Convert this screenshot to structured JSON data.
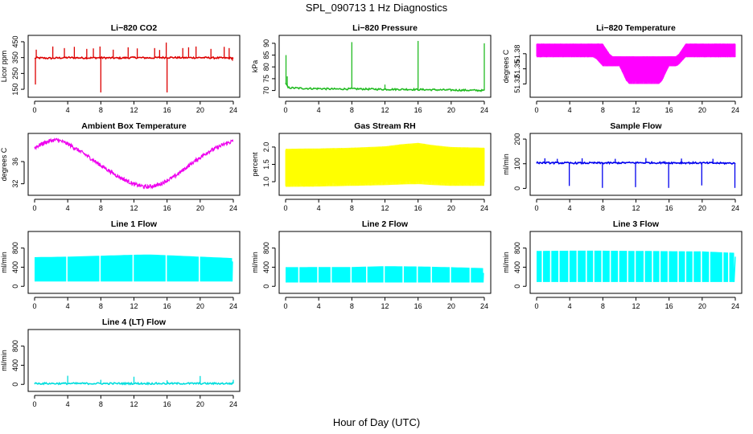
{
  "figure": {
    "title": "SPL_090713  1 Hz Diagnostics",
    "xlabel": "Hour of Day (UTC)"
  },
  "chart_data": [
    {
      "type": "line",
      "title": "Li−820 CO2",
      "ylabel": "Licor ppm",
      "color": "#dd0000",
      "xlim": [
        0,
        24
      ],
      "ylim": [
        120,
        470
      ],
      "xticks": [
        "0",
        "4",
        "8",
        "12",
        "16",
        "20",
        "24"
      ],
      "yticks": [
        {
          "v": 150,
          "label": "150"
        },
        {
          "v": 250,
          "label": "250"
        },
        {
          "v": 350,
          "label": "350"
        },
        {
          "v": 450,
          "label": "450"
        }
      ],
      "render": "spiky",
      "series": [
        {
          "x": [
            0,
            0.2,
            2,
            4,
            6,
            8,
            10,
            12,
            14,
            16,
            18,
            20,
            22,
            24
          ],
          "y": [
            345,
            348,
            346,
            350,
            348,
            349,
            347,
            350,
            348,
            351,
            349,
            350,
            348,
            347
          ]
        }
      ],
      "spikes": [
        {
          "x": 0.1,
          "y": 180
        },
        {
          "x": 0.2,
          "y": 400
        },
        {
          "x": 2.2,
          "y": 420
        },
        {
          "x": 3.6,
          "y": 410
        },
        {
          "x": 4.8,
          "y": 418
        },
        {
          "x": 6.3,
          "y": 405
        },
        {
          "x": 7.1,
          "y": 408
        },
        {
          "x": 7.9,
          "y": 420
        },
        {
          "x": 8.0,
          "y": 130
        },
        {
          "x": 9.5,
          "y": 400
        },
        {
          "x": 11.3,
          "y": 415
        },
        {
          "x": 12.4,
          "y": 408
        },
        {
          "x": 14.5,
          "y": 410
        },
        {
          "x": 15.1,
          "y": 398
        },
        {
          "x": 15.9,
          "y": 445
        },
        {
          "x": 16.0,
          "y": 130
        },
        {
          "x": 17.9,
          "y": 410
        },
        {
          "x": 18.6,
          "y": 415
        },
        {
          "x": 19.5,
          "y": 420
        },
        {
          "x": 21.3,
          "y": 405
        },
        {
          "x": 22.9,
          "y": 418
        },
        {
          "x": 23.5,
          "y": 410
        },
        {
          "x": 23.9,
          "y": 330
        }
      ]
    },
    {
      "type": "line",
      "title": "Li−820 Pressure",
      "ylabel": "kPa",
      "color": "#22bb22",
      "xlim": [
        0,
        24
      ],
      "ylim": [
        68.5,
        92
      ],
      "xticks": [
        "0",
        "4",
        "8",
        "12",
        "16",
        "20",
        "24"
      ],
      "yticks": [
        {
          "v": 70,
          "label": "70"
        },
        {
          "v": 75,
          "label": "75"
        },
        {
          "v": 80,
          "label": "80"
        },
        {
          "v": 85,
          "label": "85"
        },
        {
          "v": 90,
          "label": "90"
        }
      ],
      "render": "spiky",
      "series": [
        {
          "x": [
            0,
            0.3,
            2,
            4,
            6,
            8,
            10,
            12,
            14,
            16,
            18,
            20,
            22,
            24
          ],
          "y": [
            73,
            71.2,
            70.9,
            70.8,
            70.6,
            70.7,
            70.6,
            70.5,
            70.5,
            70.4,
            70.3,
            70.2,
            70.1,
            70.0
          ]
        }
      ],
      "spikes": [
        {
          "x": 0.05,
          "y": 85
        },
        {
          "x": 0.2,
          "y": 76
        },
        {
          "x": 8.0,
          "y": 90.5
        },
        {
          "x": 12.0,
          "y": 72.5
        },
        {
          "x": 16.0,
          "y": 91
        },
        {
          "x": 24.0,
          "y": 90
        }
      ]
    },
    {
      "type": "line",
      "title": "Li−820 Temperature",
      "ylabel": "degrees C",
      "color": "#ff00ff",
      "xlim": [
        0,
        24
      ],
      "ylim": [
        51.3,
        51.41
      ],
      "xticks": [
        "0",
        "4",
        "8",
        "12",
        "16",
        "20",
        "24"
      ],
      "yticks": [
        {
          "v": 51.32,
          "label": "51.32"
        },
        {
          "v": 51.35,
          "label": "51.35"
        },
        {
          "v": 51.38,
          "label": "51.38"
        }
      ],
      "render": "band",
      "series": [
        {
          "name": "upper",
          "x": [
            0,
            6,
            7,
            8,
            9,
            10,
            11,
            12,
            13,
            14,
            15,
            16,
            17,
            18,
            19,
            24
          ],
          "y": [
            51.4,
            51.4,
            51.4,
            51.4,
            51.375,
            51.375,
            51.375,
            51.375,
            51.375,
            51.375,
            51.375,
            51.375,
            51.375,
            51.4,
            51.4,
            51.4
          ]
        },
        {
          "name": "lower",
          "x": [
            0,
            6,
            7,
            8,
            9,
            10,
            11,
            12,
            13,
            14,
            15,
            16,
            17,
            18,
            19,
            24
          ],
          "y": [
            51.373,
            51.373,
            51.373,
            51.355,
            51.355,
            51.355,
            51.32,
            51.32,
            51.32,
            51.32,
            51.32,
            51.355,
            51.355,
            51.373,
            51.373,
            51.373
          ]
        }
      ]
    },
    {
      "type": "line",
      "title": "Ambient Box Temperature",
      "ylabel": "degrees C",
      "color": "#ee00ee",
      "xlim": [
        0,
        24
      ],
      "ylim": [
        30.5,
        40.5
      ],
      "xticks": [
        "0",
        "4",
        "8",
        "12",
        "16",
        "20",
        "24"
      ],
      "yticks": [
        {
          "v": 32,
          "label": "32"
        },
        {
          "v": 36,
          "label": "36"
        }
      ],
      "render": "noisy",
      "noise": 0.35,
      "series": [
        {
          "x": [
            0,
            1,
            2,
            2.8,
            4,
            6,
            8,
            10,
            12,
            13.5,
            15,
            17,
            19,
            21,
            23,
            24
          ],
          "y": [
            38.5,
            39.3,
            39.8,
            39.9,
            39.2,
            37.4,
            35.3,
            33.4,
            31.9,
            31.4,
            31.8,
            33.4,
            35.7,
            37.8,
            39.2,
            39.7
          ]
        }
      ]
    },
    {
      "type": "line",
      "title": "Gas Stream RH",
      "ylabel": "percent",
      "color": "#ffff00",
      "xlim": [
        0,
        24
      ],
      "ylim": [
        0.7,
        2.3
      ],
      "xticks": [
        "0",
        "4",
        "8",
        "12",
        "16",
        "20",
        "24"
      ],
      "yticks": [
        {
          "v": 1.0,
          "label": "1.0"
        },
        {
          "v": 1.5,
          "label": "1.5"
        },
        {
          "v": 2.0,
          "label": "2.0"
        }
      ],
      "render": "band",
      "series": [
        {
          "name": "upper",
          "x": [
            0,
            4,
            8,
            12,
            14,
            16,
            18,
            20,
            24
          ],
          "y": [
            1.95,
            1.96,
            1.98,
            2.02,
            2.08,
            2.12,
            2.05,
            2.0,
            1.98
          ]
        },
        {
          "name": "lower",
          "x": [
            0,
            4,
            8,
            12,
            14,
            16,
            18,
            20,
            24
          ],
          "y": [
            0.85,
            0.86,
            0.88,
            0.9,
            0.92,
            0.93,
            0.9,
            0.88,
            0.88
          ]
        }
      ]
    },
    {
      "type": "line",
      "title": "Sample Flow",
      "ylabel": "ml/min",
      "color": "#0000ee",
      "xlim": [
        0,
        24
      ],
      "ylim": [
        -15,
        210
      ],
      "xticks": [
        "0",
        "4",
        "8",
        "12",
        "16",
        "20",
        "24"
      ],
      "yticks": [
        {
          "v": 0,
          "label": "0"
        },
        {
          "v": 100,
          "label": "100"
        },
        {
          "v": 200,
          "label": "200"
        }
      ],
      "render": "spiky",
      "series": [
        {
          "x": [
            0,
            4,
            8,
            12,
            16,
            20,
            24
          ],
          "y": [
            104,
            103,
            103,
            104,
            104,
            103,
            102
          ]
        }
      ],
      "spikes": [
        {
          "x": 3.95,
          "y": 10
        },
        {
          "x": 7.95,
          "y": 2
        },
        {
          "x": 11.95,
          "y": 5
        },
        {
          "x": 15.95,
          "y": 2
        },
        {
          "x": 19.95,
          "y": 12
        },
        {
          "x": 23.95,
          "y": 2
        },
        {
          "x": 1,
          "y": 122
        },
        {
          "x": 2.5,
          "y": 120
        },
        {
          "x": 5.5,
          "y": 122
        },
        {
          "x": 9.5,
          "y": 120
        },
        {
          "x": 13.2,
          "y": 123
        },
        {
          "x": 17.5,
          "y": 121
        },
        {
          "x": 21.3,
          "y": 120
        }
      ]
    },
    {
      "type": "line",
      "title": "Line 1 Flow",
      "ylabel": "ml/min",
      "color": "#00ffff",
      "xlim": [
        0,
        24
      ],
      "ylim": [
        -80,
        1080
      ],
      "xticks": [
        "0",
        "4",
        "8",
        "12",
        "16",
        "20",
        "24"
      ],
      "yticks": [
        {
          "v": 0,
          "label": "0"
        },
        {
          "v": 400,
          "label": "400"
        },
        {
          "v": 800,
          "label": "800"
        }
      ],
      "render": "block",
      "series": [
        {
          "name": "upper",
          "x": [
            0,
            4,
            8,
            12,
            14,
            16,
            20,
            24
          ],
          "y": [
            610,
            620,
            640,
            660,
            665,
            650,
            620,
            590
          ]
        },
        {
          "name": "lower",
          "x": [
            0,
            24
          ],
          "y": [
            100,
            100
          ]
        }
      ],
      "gaps": [
        3.9,
        7.9,
        11.9,
        15.9,
        19.9
      ],
      "tail": [
        {
          "x": 23.9,
          "y": 520
        }
      ]
    },
    {
      "type": "line",
      "title": "Line 2 Flow",
      "ylabel": "ml/min",
      "color": "#00ffff",
      "xlim": [
        0,
        24
      ],
      "ylim": [
        -80,
        1080
      ],
      "xticks": [
        "0",
        "4",
        "8",
        "12",
        "16",
        "20",
        "24"
      ],
      "yticks": [
        {
          "v": 0,
          "label": "0"
        },
        {
          "v": 400,
          "label": "400"
        },
        {
          "v": 800,
          "label": "800"
        }
      ],
      "render": "block",
      "series": [
        {
          "name": "upper",
          "x": [
            0,
            8,
            12,
            16,
            20,
            24
          ],
          "y": [
            400,
            405,
            420,
            415,
            400,
            380
          ]
        },
        {
          "name": "lower",
          "x": [
            0,
            24
          ],
          "y": [
            80,
            80
          ]
        }
      ],
      "gaps": [
        1.6,
        3.9,
        5.5,
        7.9,
        9.8,
        11.9,
        14.2,
        15.9,
        17.6,
        19.9,
        22.3
      ],
      "tail": [
        {
          "x": 23.9,
          "y": 280
        }
      ]
    },
    {
      "type": "line",
      "title": "Line 3 Flow",
      "ylabel": "ml/min",
      "color": "#00ffff",
      "xlim": [
        0,
        24
      ],
      "ylim": [
        -80,
        1080
      ],
      "xticks": [
        "0",
        "4",
        "8",
        "12",
        "16",
        "20",
        "24"
      ],
      "yticks": [
        {
          "v": 0,
          "label": "0"
        },
        {
          "v": 400,
          "label": "400"
        },
        {
          "v": 800,
          "label": "800"
        }
      ],
      "render": "block",
      "series": [
        {
          "name": "upper",
          "x": [
            0,
            4,
            8,
            12,
            16,
            20,
            24
          ],
          "y": [
            740,
            745,
            745,
            740,
            735,
            730,
            700
          ]
        },
        {
          "name": "lower",
          "x": [
            0,
            24
          ],
          "y": [
            90,
            90
          ]
        }
      ],
      "gaps": [
        0.7,
        1.7,
        2.7,
        3.9,
        4.9,
        6.0,
        6.9,
        7.9,
        8.9,
        9.9,
        11.0,
        11.9,
        13.0,
        14.0,
        14.9,
        15.9,
        17.1,
        18.0,
        18.9,
        19.9,
        20.9,
        22.5,
        23.2
      ],
      "tail": [
        {
          "x": 24.0,
          "y": 620
        }
      ]
    },
    {
      "type": "line",
      "title": "Line 4 (LT) Flow",
      "ylabel": "ml/min",
      "color": "#00dddd",
      "xlim": [
        0,
        24
      ],
      "ylim": [
        -80,
        1080
      ],
      "xticks": [
        "0",
        "4",
        "8",
        "12",
        "16",
        "20",
        "24"
      ],
      "yticks": [
        {
          "v": 0,
          "label": "0"
        },
        {
          "v": 400,
          "label": "400"
        },
        {
          "v": 800,
          "label": "800"
        }
      ],
      "render": "spiky",
      "series": [
        {
          "x": [
            0,
            12,
            24
          ],
          "y": [
            18,
            18,
            18
          ]
        }
      ],
      "spikes": [
        {
          "x": 4.0,
          "y": 180
        },
        {
          "x": 8.0,
          "y": 95
        },
        {
          "x": 12.0,
          "y": 160
        },
        {
          "x": 16.0,
          "y": 85
        },
        {
          "x": 20.0,
          "y": 175
        },
        {
          "x": 24.0,
          "y": 95
        }
      ]
    }
  ]
}
